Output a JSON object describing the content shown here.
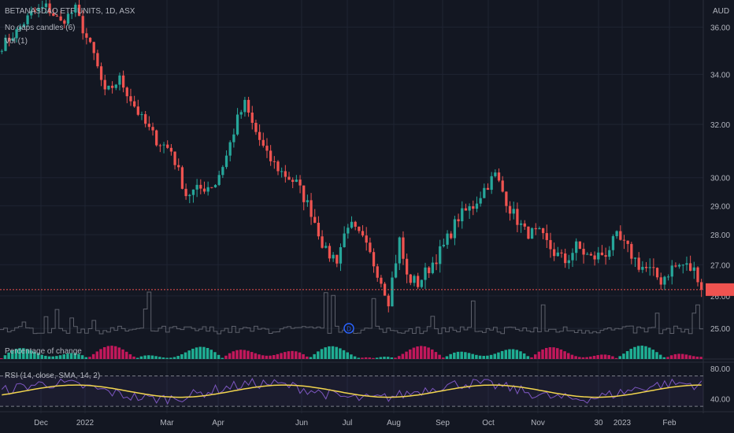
{
  "header": {
    "symbol_line": "BETANASDAQ ETF UNITS, 1D, ASX",
    "indicator_1": "No gaps candles (6)",
    "indicator_2": "Vol (1)",
    "currency": "AUD"
  },
  "pct_label": "Percentage of change",
  "rsi_label": "RSI (14, close, SMA, 14, 2)",
  "event_marker": "D",
  "chart_data": {
    "type": "candlestick",
    "price_axis": {
      "ticks": [
        "36.00",
        "34.00",
        "32.00",
        "30.00",
        "29.00",
        "28.00",
        "27.00",
        "26.00",
        "25.00"
      ],
      "scale": "log",
      "range": [
        24.6,
        37.2
      ]
    },
    "x_axis_labels": [
      "Dec",
      "2022",
      "Mar",
      "Apr",
      "Jun",
      "Jul",
      "Aug",
      "Sep",
      "Oct",
      "Nov",
      "30",
      "2023",
      "Feb"
    ],
    "price_path": [
      [
        0,
        35.2
      ],
      [
        4,
        35.8
      ],
      [
        8,
        36.6
      ],
      [
        12,
        36.9
      ],
      [
        16,
        36.2
      ],
      [
        20,
        36.8
      ],
      [
        22,
        35.9
      ],
      [
        25,
        34.8
      ],
      [
        28,
        33.2
      ],
      [
        32,
        33.8
      ],
      [
        35,
        33.0
      ],
      [
        38,
        32.2
      ],
      [
        42,
        31.4
      ],
      [
        46,
        31.0
      ],
      [
        50,
        29.4
      ],
      [
        54,
        29.6
      ],
      [
        58,
        29.8
      ],
      [
        61,
        30.8
      ],
      [
        64,
        32.2
      ],
      [
        66,
        32.8
      ],
      [
        68,
        32.0
      ],
      [
        72,
        30.8
      ],
      [
        76,
        30.2
      ],
      [
        80,
        29.8
      ],
      [
        84,
        28.8
      ],
      [
        88,
        27.4
      ],
      [
        91,
        27.2
      ],
      [
        94,
        28.4
      ],
      [
        98,
        27.8
      ],
      [
        102,
        26.8
      ],
      [
        105,
        25.9
      ],
      [
        108,
        27.8
      ],
      [
        110,
        26.6
      ],
      [
        113,
        26.4
      ],
      [
        116,
        26.9
      ],
      [
        120,
        27.6
      ],
      [
        124,
        28.6
      ],
      [
        128,
        29.0
      ],
      [
        131,
        29.6
      ],
      [
        134,
        30.1
      ],
      [
        138,
        28.9
      ],
      [
        142,
        28.1
      ],
      [
        146,
        28.0
      ],
      [
        150,
        27.4
      ],
      [
        153,
        27.1
      ],
      [
        156,
        27.6
      ],
      [
        160,
        27.2
      ],
      [
        164,
        27.4
      ],
      [
        167,
        27.9
      ],
      [
        170,
        27.5
      ],
      [
        173,
        27.0
      ],
      [
        176,
        26.8
      ],
      [
        179,
        26.5
      ],
      [
        182,
        26.9
      ],
      [
        185,
        27.0
      ],
      [
        188,
        26.8
      ],
      [
        190,
        26.5
      ]
    ],
    "last_price": 26.2,
    "volume_last_max_ratio": 0.25,
    "rsi": {
      "ticks": [
        "80.00",
        "40.00"
      ],
      "upper_band": 70,
      "lower_band": 30,
      "range": [
        25,
        85
      ]
    },
    "colors": {
      "up": "#26a69a",
      "down": "#ef5350",
      "pct_up": "#1fae93",
      "pct_down": "#c2185b",
      "rsi": "#7e57c2",
      "rsi_ma": "#f2d54e",
      "volume": "#5d606b",
      "last_line": "#ef5350"
    }
  }
}
